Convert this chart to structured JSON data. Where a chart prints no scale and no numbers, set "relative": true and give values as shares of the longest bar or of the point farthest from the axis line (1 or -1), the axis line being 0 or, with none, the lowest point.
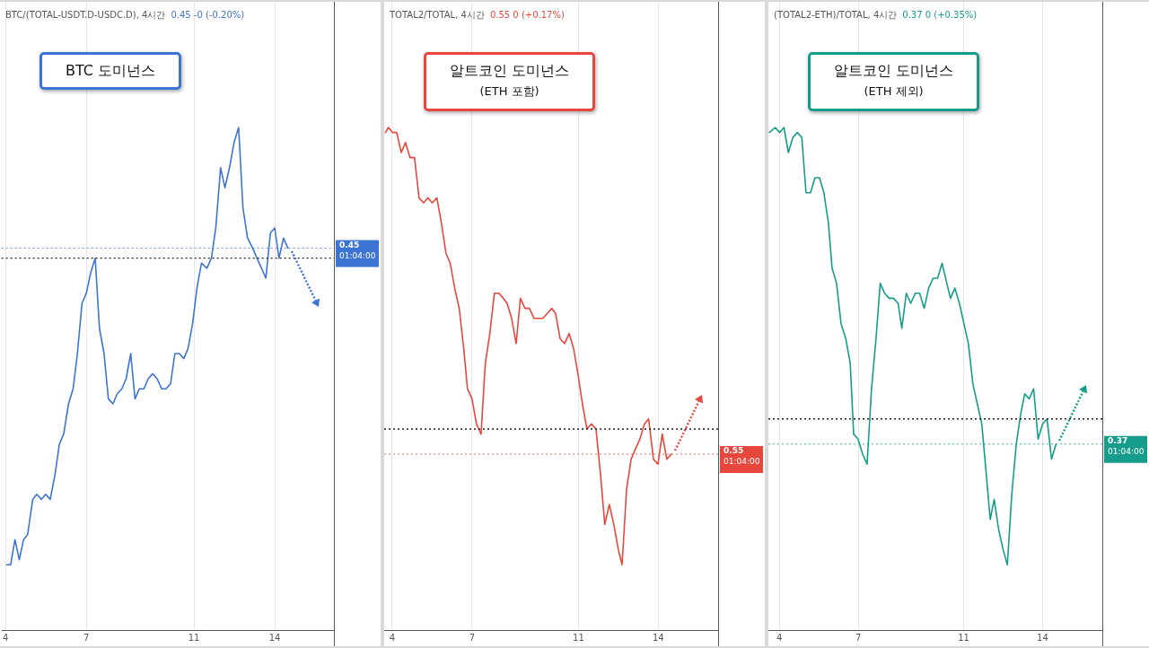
{
  "chart_data": [
    {
      "type": "line",
      "title": "BTC/(TOTAL-USDT.D-USDC.D), 4시간",
      "subtitle": "0.45  -0 (-0.20%)",
      "annotations": [
        "BTC 도미넌스"
      ],
      "relative": true,
      "color": "#3d74d4",
      "marker": "none",
      "line_style": "solid",
      "grid": "x",
      "xlim": [
        3.85,
        16.2
      ],
      "xticks": [
        4,
        7,
        11,
        14
      ],
      "x": [
        4.04,
        4.19,
        4.35,
        4.51,
        4.67,
        4.82,
        5.01,
        5.16,
        5.33,
        5.49,
        5.66,
        5.84,
        6.0,
        6.16,
        6.34,
        6.51,
        6.67,
        6.84,
        7.0,
        7.16,
        7.33,
        7.49,
        7.66,
        7.82,
        7.99,
        8.15,
        8.32,
        8.48,
        8.65,
        8.81,
        8.97,
        9.14,
        9.3,
        9.47,
        9.63,
        9.8,
        9.96,
        10.13,
        10.29,
        10.46,
        10.62,
        10.78,
        10.95,
        11.11,
        11.28,
        11.48,
        11.65,
        11.81,
        11.99,
        12.15,
        12.32,
        12.49,
        12.66,
        12.82,
        12.99,
        13.18,
        13.34,
        13.51,
        13.67,
        13.84,
        14.0,
        14.16,
        14.33,
        14.49
      ],
      "values": [
        0.13,
        0.13,
        0.18,
        0.14,
        0.18,
        0.19,
        0.26,
        0.27,
        0.26,
        0.27,
        0.26,
        0.31,
        0.37,
        0.39,
        0.45,
        0.48,
        0.55,
        0.65,
        0.67,
        0.71,
        0.74,
        0.6,
        0.55,
        0.46,
        0.45,
        0.47,
        0.48,
        0.5,
        0.55,
        0.46,
        0.48,
        0.48,
        0.5,
        0.51,
        0.5,
        0.48,
        0.48,
        0.49,
        0.55,
        0.55,
        0.54,
        0.56,
        0.61,
        0.68,
        0.73,
        0.72,
        0.74,
        0.8,
        0.92,
        0.88,
        0.92,
        0.97,
        1,
        0.84,
        0.78,
        0.76,
        0.74,
        0.72,
        0.7,
        0.79,
        0.8,
        0.74,
        0.78,
        0.76
      ],
      "ref_lines": [
        {
          "axis": "y",
          "value": 0.74,
          "color": "#222222",
          "line_style": "dotted"
        },
        {
          "axis": "y",
          "value": 0.76,
          "color": "#3d74d4",
          "line_style": "dotted",
          "label": "0.45\n01:04:00"
        }
      ]
    },
    {
      "type": "line",
      "title": "TOTAL2/TOTAL, 4시간",
      "subtitle": "0.55  0 (+0.17%)",
      "annotations": [
        "알트코인 도미넌스\n(ETH 포함)"
      ],
      "relative": true,
      "color": "#e8473d",
      "marker": "none",
      "line_style": "solid",
      "grid": "x",
      "xlim": [
        3.7,
        16.25
      ],
      "xticks": [
        4,
        7,
        11,
        14
      ],
      "x": [
        3.75,
        3.86,
        4.01,
        4.17,
        4.34,
        4.5,
        4.67,
        4.84,
        5.01,
        5.18,
        5.34,
        5.51,
        5.68,
        5.85,
        6.02,
        6.18,
        6.35,
        6.52,
        6.69,
        6.83,
        7.0,
        7.17,
        7.34,
        7.5,
        7.67,
        7.84,
        8.01,
        8.18,
        8.32,
        8.49,
        8.66,
        8.82,
        8.99,
        9.16,
        9.33,
        9.5,
        9.66,
        9.83,
        10.0,
        10.14,
        10.31,
        10.48,
        10.65,
        10.82,
        10.98,
        11.15,
        11.32,
        11.49,
        11.66,
        11.83,
        11.99,
        12.16,
        12.33,
        12.5,
        12.64,
        12.81,
        12.98,
        13.14,
        13.31,
        13.48,
        13.64,
        13.82,
        13.99,
        14.15,
        14.32,
        14.49
      ],
      "values": [
        0.99,
        1,
        0.99,
        0.99,
        0.95,
        0.97,
        0.94,
        0.94,
        0.86,
        0.85,
        0.86,
        0.85,
        0.86,
        0.81,
        0.75,
        0.73,
        0.68,
        0.64,
        0.56,
        0.48,
        0.46,
        0.41,
        0.39,
        0.53,
        0.59,
        0.67,
        0.67,
        0.66,
        0.65,
        0.62,
        0.57,
        0.66,
        0.64,
        0.64,
        0.62,
        0.62,
        0.62,
        0.63,
        0.64,
        0.63,
        0.58,
        0.57,
        0.59,
        0.56,
        0.51,
        0.45,
        0.4,
        0.41,
        0.4,
        0.31,
        0.21,
        0.25,
        0.21,
        0.16,
        0.13,
        0.28,
        0.34,
        0.36,
        0.38,
        0.41,
        0.42,
        0.34,
        0.33,
        0.39,
        0.34,
        0.35
      ],
      "ref_lines": [
        {
          "axis": "y",
          "value": 0.4,
          "color": "#222222",
          "line_style": "dotted"
        },
        {
          "axis": "y",
          "value": 0.35,
          "color": "#e8473d",
          "line_style": "dotted",
          "label": "0.55\n01:04:00"
        }
      ]
    },
    {
      "type": "line",
      "title": "(TOTAL2-ETH)/TOTAL, 4시간",
      "subtitle": "0.37  0 (+0.35%)",
      "annotations": [
        "알트코인 도미넌스\n(ETH 제외)"
      ],
      "relative": true,
      "color": "#169c8b",
      "marker": "none",
      "line_style": "solid",
      "grid": "x",
      "xlim": [
        3.58,
        16.27
      ],
      "xticks": [
        4,
        7,
        11,
        14
      ],
      "x": [
        3.62,
        3.84,
        4.01,
        4.17,
        4.34,
        4.51,
        4.68,
        4.85,
        5.01,
        5.18,
        5.35,
        5.52,
        5.69,
        5.86,
        6.0,
        6.17,
        6.34,
        6.52,
        6.69,
        6.82,
        6.99,
        7.16,
        7.33,
        7.5,
        7.67,
        7.83,
        8.0,
        8.17,
        8.34,
        8.51,
        8.65,
        8.82,
        8.99,
        9.16,
        9.33,
        9.5,
        9.67,
        9.84,
        10.01,
        10.18,
        10.36,
        10.5,
        10.67,
        10.84,
        11.01,
        11.18,
        11.35,
        11.52,
        11.69,
        11.86,
        12.01,
        12.16,
        12.33,
        12.5,
        12.66,
        12.83,
        13.0,
        13.17,
        13.32,
        13.49,
        13.66,
        13.83,
        14.0,
        14.17,
        14.34,
        14.51
      ],
      "values": [
        0.99,
        1,
        0.99,
        1,
        0.95,
        0.98,
        0.99,
        0.98,
        0.87,
        0.87,
        0.9,
        0.9,
        0.87,
        0.81,
        0.72,
        0.69,
        0.61,
        0.58,
        0.53,
        0.39,
        0.38,
        0.35,
        0.33,
        0.48,
        0.58,
        0.69,
        0.67,
        0.66,
        0.66,
        0.65,
        0.6,
        0.67,
        0.65,
        0.67,
        0.67,
        0.64,
        0.68,
        0.7,
        0.7,
        0.73,
        0.69,
        0.66,
        0.68,
        0.65,
        0.61,
        0.57,
        0.49,
        0.45,
        0.41,
        0.31,
        0.22,
        0.26,
        0.2,
        0.16,
        0.13,
        0.27,
        0.37,
        0.43,
        0.47,
        0.46,
        0.48,
        0.38,
        0.41,
        0.42,
        0.34,
        0.37
      ],
      "ref_lines": [
        {
          "axis": "y",
          "value": 0.42,
          "color": "#222222",
          "line_style": "dotted"
        },
        {
          "axis": "y",
          "value": 0.37,
          "color": "#169c8b",
          "line_style": "dotted",
          "label": "0.37\n01:04:00"
        }
      ]
    }
  ]
}
